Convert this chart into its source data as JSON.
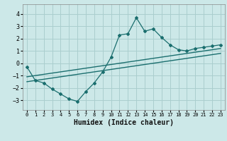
{
  "xlabel": "Humidex (Indice chaleur)",
  "bg_color": "#cce8e8",
  "grid_color": "#aacece",
  "line_color": "#1a6e6e",
  "xlim": [
    -0.5,
    23.5
  ],
  "ylim": [
    -3.8,
    4.8
  ],
  "yticks": [
    -3,
    -2,
    -1,
    0,
    1,
    2,
    3,
    4
  ],
  "xticks": [
    0,
    1,
    2,
    3,
    4,
    5,
    6,
    7,
    8,
    9,
    10,
    11,
    12,
    13,
    14,
    15,
    16,
    17,
    18,
    19,
    20,
    21,
    22,
    23
  ],
  "main_x": [
    0,
    1,
    2,
    3,
    4,
    5,
    6,
    7,
    8,
    9,
    10,
    11,
    12,
    13,
    14,
    15,
    16,
    17,
    18,
    19,
    20,
    21,
    22,
    23
  ],
  "main_y": [
    -0.3,
    -1.4,
    -1.6,
    -2.1,
    -2.5,
    -2.9,
    -3.1,
    -2.3,
    -1.6,
    -0.7,
    0.5,
    2.3,
    2.4,
    3.7,
    2.6,
    2.8,
    2.1,
    1.5,
    1.1,
    1.0,
    1.2,
    1.3,
    1.4,
    1.5
  ],
  "line1_x": [
    0,
    23
  ],
  "line1_y": [
    -1.1,
    1.2
  ],
  "line2_x": [
    0,
    23
  ],
  "line2_y": [
    -1.5,
    0.8
  ]
}
